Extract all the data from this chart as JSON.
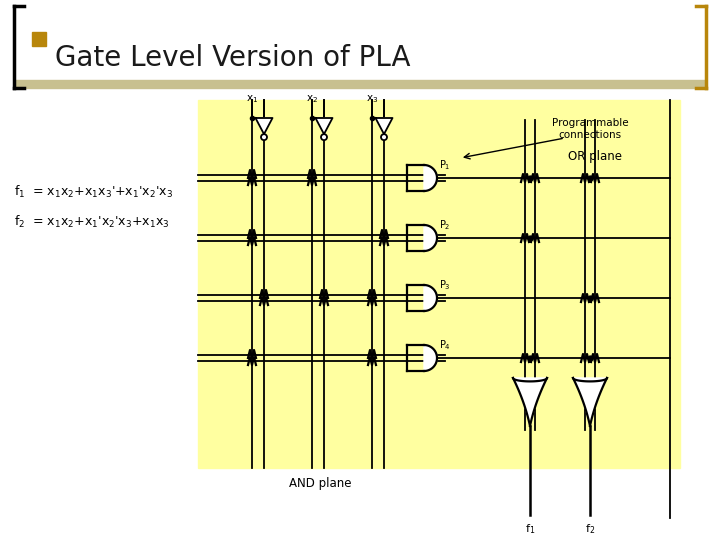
{
  "title": "Gate Level Version of PLA",
  "title_color": "#1a1a1a",
  "title_fontsize": 20,
  "bg_color": "#ffffff",
  "bullet_color": "#B8860B",
  "header_line_color": "#C8C090",
  "right_bracket_color": "#B8860B",
  "yellow_fill": "#FFFFA0",
  "black": "#000000",
  "f1_text": "f$_1$  = x$_1$x$_2$+x$_1$x$_3$'+x$_1$'x$_2$'x$_3$",
  "f2_text": "f$_2$  = x$_1$x$_2$+x$_1$'x$_2$'x$_3$+x$_1$x$_3$",
  "and_plane_label": "AND plane",
  "or_plane_label": "OR plane",
  "prog_conn_label": "Programmable\nconnections",
  "x_labels": [
    "x$_1$",
    "x$_2$",
    "x$_3$"
  ],
  "p_labels": [
    "P$_1$",
    "P$_2$",
    "P$_3$",
    "P$_4$"
  ],
  "f_labels": [
    "f$_1$",
    "f$_2$"
  ]
}
